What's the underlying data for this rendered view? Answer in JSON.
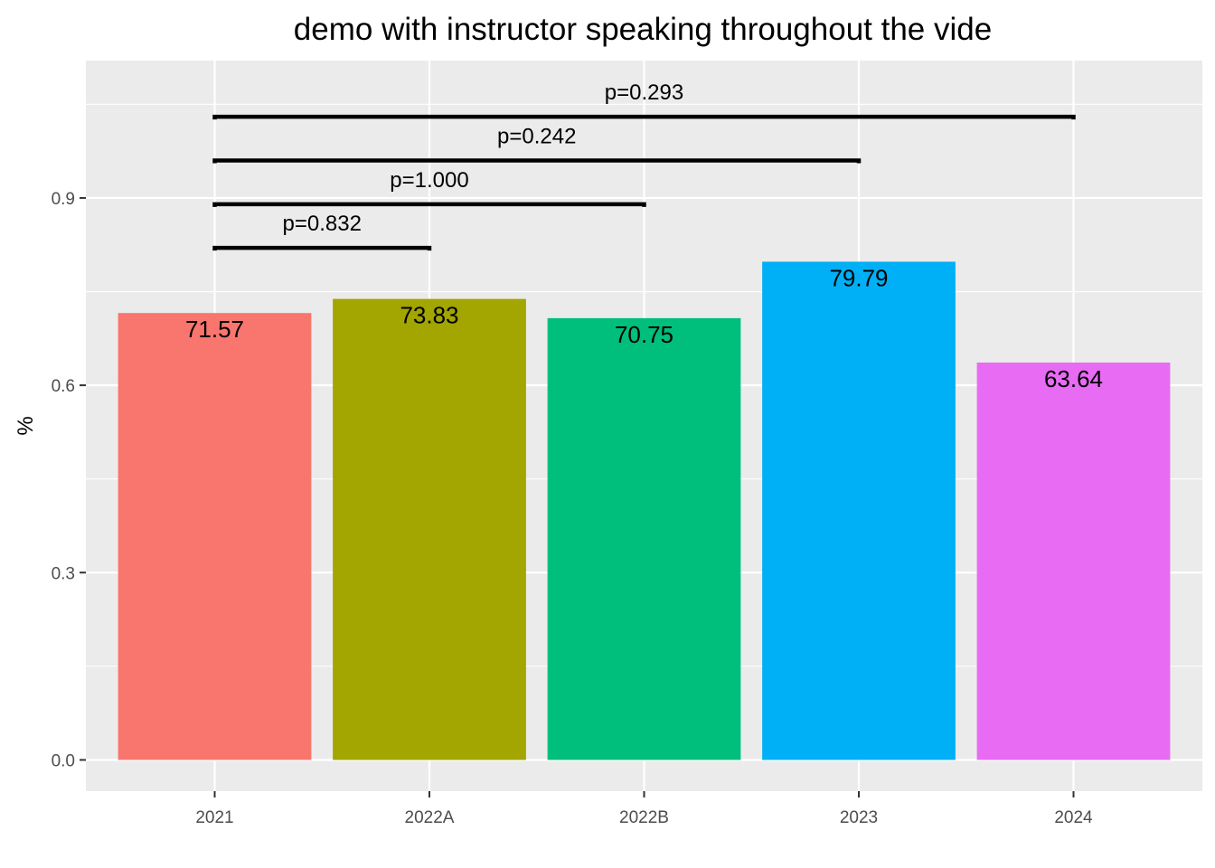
{
  "chart_data": {
    "type": "bar",
    "title": "demo with instructor speaking throughout the vide",
    "xlabel": "",
    "ylabel": "%",
    "categories": [
      "2021",
      "2022A",
      "2022B",
      "2023",
      "2024"
    ],
    "values": [
      0.7157,
      0.7383,
      0.7075,
      0.7979,
      0.6364
    ],
    "value_labels": [
      "71.57",
      "73.83",
      "70.75",
      "79.79",
      "63.64"
    ],
    "colors": [
      "#F8766D",
      "#A3A500",
      "#00BF7D",
      "#00B0F6",
      "#E76BF3"
    ],
    "ylim": [
      -0.05,
      1.12
    ],
    "yticks": [
      0.0,
      0.3,
      0.6,
      0.9
    ],
    "ytick_labels": [
      "0.0",
      "0.3",
      "0.6",
      "0.9"
    ],
    "grid": true,
    "legend": "none",
    "comparisons": [
      {
        "from": "2021",
        "to": "2022A",
        "y": 0.82,
        "label": "p=0.832"
      },
      {
        "from": "2021",
        "to": "2022B",
        "y": 0.89,
        "label": "p=1.000"
      },
      {
        "from": "2021",
        "to": "2023",
        "y": 0.96,
        "label": "p=0.242"
      },
      {
        "from": "2021",
        "to": "2024",
        "y": 1.03,
        "label": "p=0.293"
      }
    ]
  }
}
